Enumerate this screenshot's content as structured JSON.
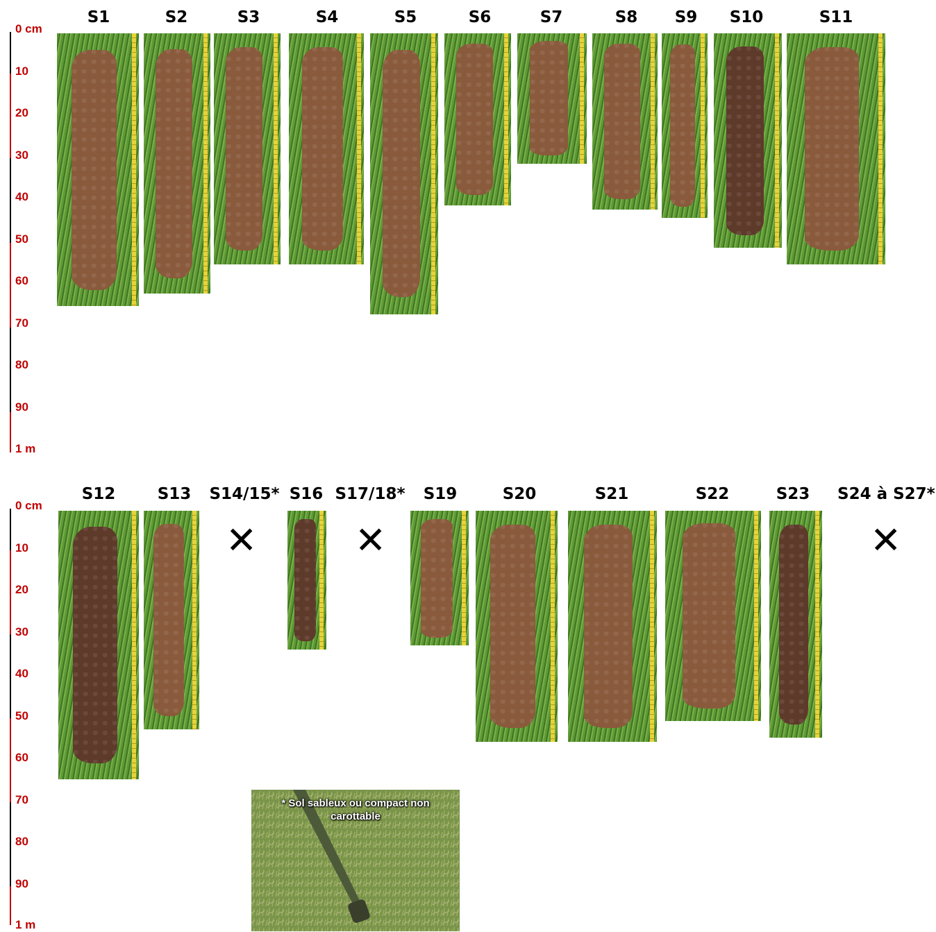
{
  "ruler": {
    "labels": [
      "0 cm",
      "10",
      "20",
      "30",
      "40",
      "50",
      "60",
      "70",
      "80",
      "90",
      "1 m"
    ],
    "colors": {
      "red": "#c00000",
      "black": "#000000"
    }
  },
  "row1": {
    "headers": [
      "S1",
      "S2",
      "S3",
      "S4",
      "S5",
      "S6",
      "S7",
      "S8",
      "S9",
      "S10",
      "S11"
    ],
    "depths_cm": [
      65,
      62,
      55,
      55,
      67,
      41,
      31,
      42,
      44,
      51,
      55
    ]
  },
  "row2": {
    "headers": [
      "S12",
      "S13",
      "S14/15*",
      "S16",
      "S17/18*",
      "S19",
      "S20",
      "S21",
      "S22",
      "S23",
      "S24 à S27*"
    ],
    "depths_cm": [
      64,
      52,
      null,
      33,
      null,
      32,
      55,
      55,
      50,
      54,
      null
    ],
    "not_cored_marker": "✕"
  },
  "note": {
    "line1": "* Sol sableux ou compact non",
    "line2": "carottable"
  },
  "colors": {
    "grass": "#4f8a2e",
    "soil": "#8a5a3c",
    "dark_soil": "#5e3a2a",
    "tape": "#e8d33a"
  }
}
